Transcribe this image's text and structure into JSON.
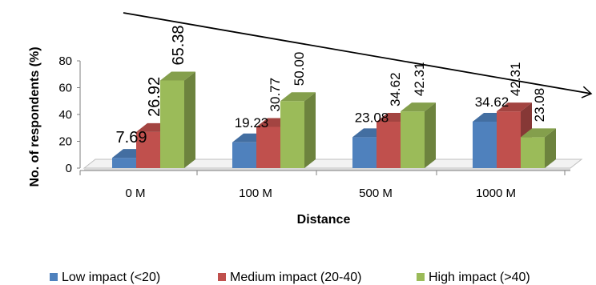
{
  "chart_data": {
    "type": "bar",
    "style": "3d-clustered-column",
    "title": "",
    "xlabel": "Distance",
    "ylabel": "No. of respondents (%)",
    "ylim": [
      0,
      80
    ],
    "yticks": [
      0,
      20,
      40,
      60,
      80
    ],
    "grid": false,
    "legend_position": "bottom",
    "categories": [
      "0 M",
      "100 M",
      "500 M",
      "1000 M"
    ],
    "series": [
      {
        "name": "Low impact (<20)",
        "color": "#4F81BD",
        "values": [
          7.69,
          19.23,
          23.08,
          34.62
        ],
        "labels": [
          "7.69",
          "19.23",
          "23.08",
          "34.62"
        ]
      },
      {
        "name": "Medium impact (20-40)",
        "color": "#C0504D",
        "values": [
          26.92,
          30.77,
          34.62,
          42.31
        ],
        "labels": [
          "26.92",
          "30.77",
          "34.62",
          "42.31"
        ]
      },
      {
        "name": "High impact (>40)",
        "color": "#9BBB59",
        "values": [
          65.38,
          50.0,
          42.31,
          23.08
        ],
        "labels": [
          "65.38",
          "50.00",
          "42.31",
          "23.08"
        ]
      }
    ],
    "annotation": "trend-arrow"
  }
}
